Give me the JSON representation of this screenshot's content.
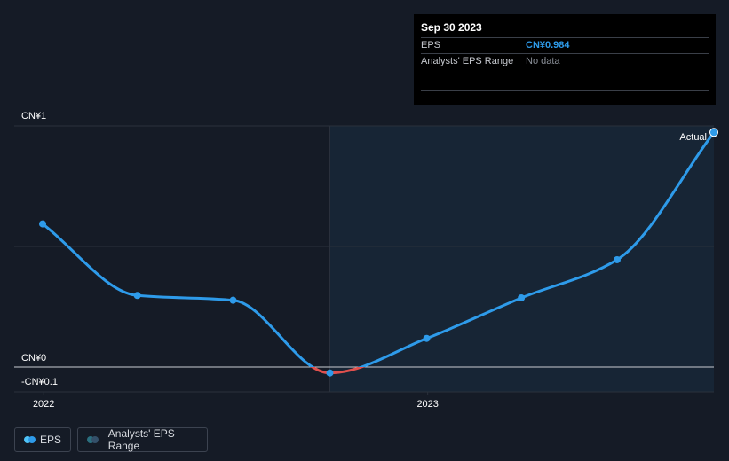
{
  "tooltip": {
    "date": "Sep 30 2023",
    "rows": [
      {
        "label": "EPS",
        "value": "CN¥0.984"
      },
      {
        "label": "Analysts' EPS Range",
        "value": "No data"
      }
    ]
  },
  "legend": {
    "eps_label": "EPS",
    "range_label": "Analysts' EPS Range"
  },
  "colors": {
    "background": "#151b26",
    "forecast_band": "#172535",
    "eps_line": "#2e9bea",
    "negative_line": "#e0504d",
    "grid": "#2a313c",
    "zero_line": "#c9ccd1"
  },
  "chart_data": {
    "type": "line",
    "y_ticks": [
      {
        "value": 1,
        "label": "CN¥1"
      },
      {
        "value": 0,
        "label": "CN¥0"
      },
      {
        "value": -0.1,
        "label": "-CN¥0.1"
      }
    ],
    "x_ticks": [
      {
        "value": "2022-01-01",
        "label": "2022"
      },
      {
        "value": "2023-01-01",
        "label": "2023"
      }
    ],
    "xlim": [
      "2021-12-31",
      "2023-09-30"
    ],
    "ylim": [
      -0.1,
      1
    ],
    "highlight_start": "2022-09-30",
    "annotation": "Actual",
    "series": [
      {
        "name": "EPS",
        "points": [
          {
            "x": "2021-12-31",
            "y": 0.6
          },
          {
            "x": "2022-03-31",
            "y": 0.3
          },
          {
            "x": "2022-06-30",
            "y": 0.28
          },
          {
            "x": "2022-09-30",
            "y": -0.025
          },
          {
            "x": "2022-12-31",
            "y": 0.12
          },
          {
            "x": "2023-03-31",
            "y": 0.29
          },
          {
            "x": "2023-06-30",
            "y": 0.45
          },
          {
            "x": "2023-09-30",
            "y": 0.984
          }
        ]
      }
    ]
  }
}
